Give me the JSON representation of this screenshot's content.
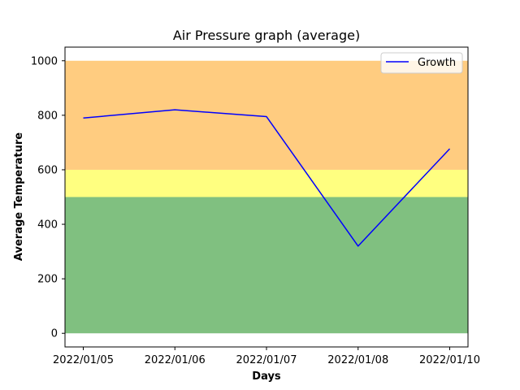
{
  "chart_data": {
    "type": "line",
    "title": "Air Pressure graph (average)",
    "xlabel": "Days",
    "ylabel": "Average Temperature",
    "categories": [
      "2022/01/05",
      "2022/01/06",
      "2022/01/07",
      "2022/01/08",
      "2022/01/10"
    ],
    "series": [
      {
        "name": "Growth",
        "values": [
          790,
          820,
          795,
          320,
          677
        ],
        "color": "#0000ff"
      }
    ],
    "y_ticks": [
      0,
      200,
      400,
      600,
      800,
      1000
    ],
    "ylim": [
      -50,
      1050
    ],
    "bands": [
      {
        "from": 0,
        "to": 500,
        "color": "#80c080"
      },
      {
        "from": 500,
        "to": 600,
        "color": "#ffff80"
      },
      {
        "from": 600,
        "to": 1000,
        "color": "#ffcc80"
      }
    ],
    "legend": "top-right",
    "grid": false
  }
}
